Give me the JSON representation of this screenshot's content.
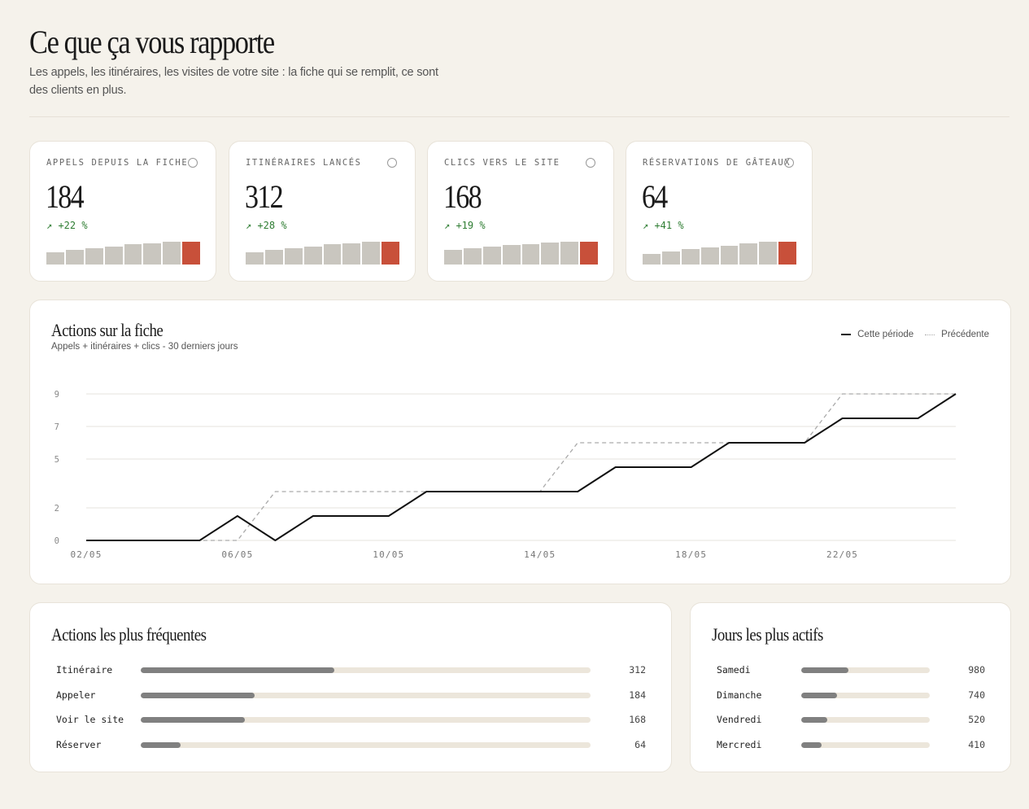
{
  "header": {
    "title": "Ce que ça vous rapporte",
    "subtitle": "Les appels, les itinéraires, les visites de votre site : la fiche qui se remplit, ce sont des clients en plus."
  },
  "kpis": [
    {
      "label": "APPELS DEPUIS LA FICHE",
      "value": "184",
      "delta": "↗ +22 %",
      "trend": [
        0.5,
        0.6,
        0.68,
        0.75,
        0.82,
        0.88,
        0.93,
        0.95
      ]
    },
    {
      "label": "ITINÉRAIRES LANCÉS",
      "value": "312",
      "delta": "↗ +28 %",
      "trend": [
        0.5,
        0.6,
        0.68,
        0.75,
        0.82,
        0.88,
        0.93,
        0.95
      ]
    },
    {
      "label": "CLICS VERS LE SITE",
      "value": "168",
      "delta": "↗ +19 %",
      "trend": [
        0.6,
        0.68,
        0.75,
        0.8,
        0.85,
        0.9,
        0.95,
        0.95
      ]
    },
    {
      "label": "RÉSERVATIONS DE GÂTEAUX",
      "value": "64",
      "delta": "↗ +41 %",
      "trend": [
        0.45,
        0.52,
        0.62,
        0.7,
        0.78,
        0.86,
        0.92,
        0.95
      ]
    }
  ],
  "actions_chart": {
    "title": "Actions sur la fiche",
    "subtitle": "Appels + itinéraires + clics - 30 derniers jours",
    "legend": {
      "current": "Cette période",
      "previous": "Précédente"
    },
    "chart_data": {
      "type": "line",
      "x_ticks": [
        "02/05",
        "06/05",
        "10/05",
        "14/05",
        "18/05",
        "22/05"
      ],
      "y_ticks": [
        "0",
        "2",
        "5",
        "7",
        "9"
      ],
      "ylim": [
        0,
        9
      ],
      "grid": true,
      "legend_position": "top-right",
      "series": [
        {
          "name": "Cette période",
          "style": "solid",
          "color": "#111111",
          "x": [
            "02/05",
            "03/05",
            "04/05",
            "05/05",
            "06/05",
            "07/05",
            "08/05",
            "09/05",
            "10/05",
            "11/05",
            "12/05",
            "13/05",
            "14/05",
            "15/05",
            "16/05",
            "17/05",
            "18/05",
            "19/05",
            "20/05",
            "21/05",
            "22/05",
            "23/05",
            "24/05",
            "25/05"
          ],
          "y": [
            0,
            0,
            0,
            0,
            1.5,
            0,
            1.5,
            1.5,
            1.5,
            3,
            3,
            3,
            3,
            3,
            4.5,
            4.5,
            4.5,
            6,
            6,
            6,
            7.5,
            7.5,
            7.5,
            9
          ]
        },
        {
          "name": "Précédente",
          "style": "dashed",
          "color": "#aaaaaa",
          "x": [
            "02/05",
            "03/05",
            "04/05",
            "05/05",
            "06/05",
            "07/05",
            "08/05",
            "09/05",
            "10/05",
            "11/05",
            "12/05",
            "13/05",
            "14/05",
            "15/05",
            "16/05",
            "17/05",
            "18/05",
            "19/05",
            "20/05",
            "21/05",
            "22/05",
            "23/05",
            "24/05",
            "25/05"
          ],
          "y": [
            0,
            0,
            0,
            0,
            0,
            3,
            3,
            3,
            3,
            3,
            3,
            3,
            3,
            6,
            6,
            6,
            6,
            6,
            6,
            6,
            9,
            9,
            9,
            9
          ]
        }
      ]
    }
  },
  "frequent_actions": {
    "title": "Actions les plus fréquentes",
    "items": [
      {
        "label": "Itinéraire",
        "value": "312",
        "fraction": 0.43
      },
      {
        "label": "Appeler",
        "value": "184",
        "fraction": 0.253
      },
      {
        "label": "Voir le site",
        "value": "168",
        "fraction": 0.231
      },
      {
        "label": "Réserver",
        "value": "64",
        "fraction": 0.088
      }
    ]
  },
  "active_days": {
    "title": "Jours les plus actifs",
    "items": [
      {
        "label": "Samedi",
        "value": "980",
        "fraction": 0.37
      },
      {
        "label": "Dimanche",
        "value": "740",
        "fraction": 0.28
      },
      {
        "label": "Vendredi",
        "value": "520",
        "fraction": 0.2
      },
      {
        "label": "Mercredi",
        "value": "410",
        "fraction": 0.16
      }
    ]
  }
}
